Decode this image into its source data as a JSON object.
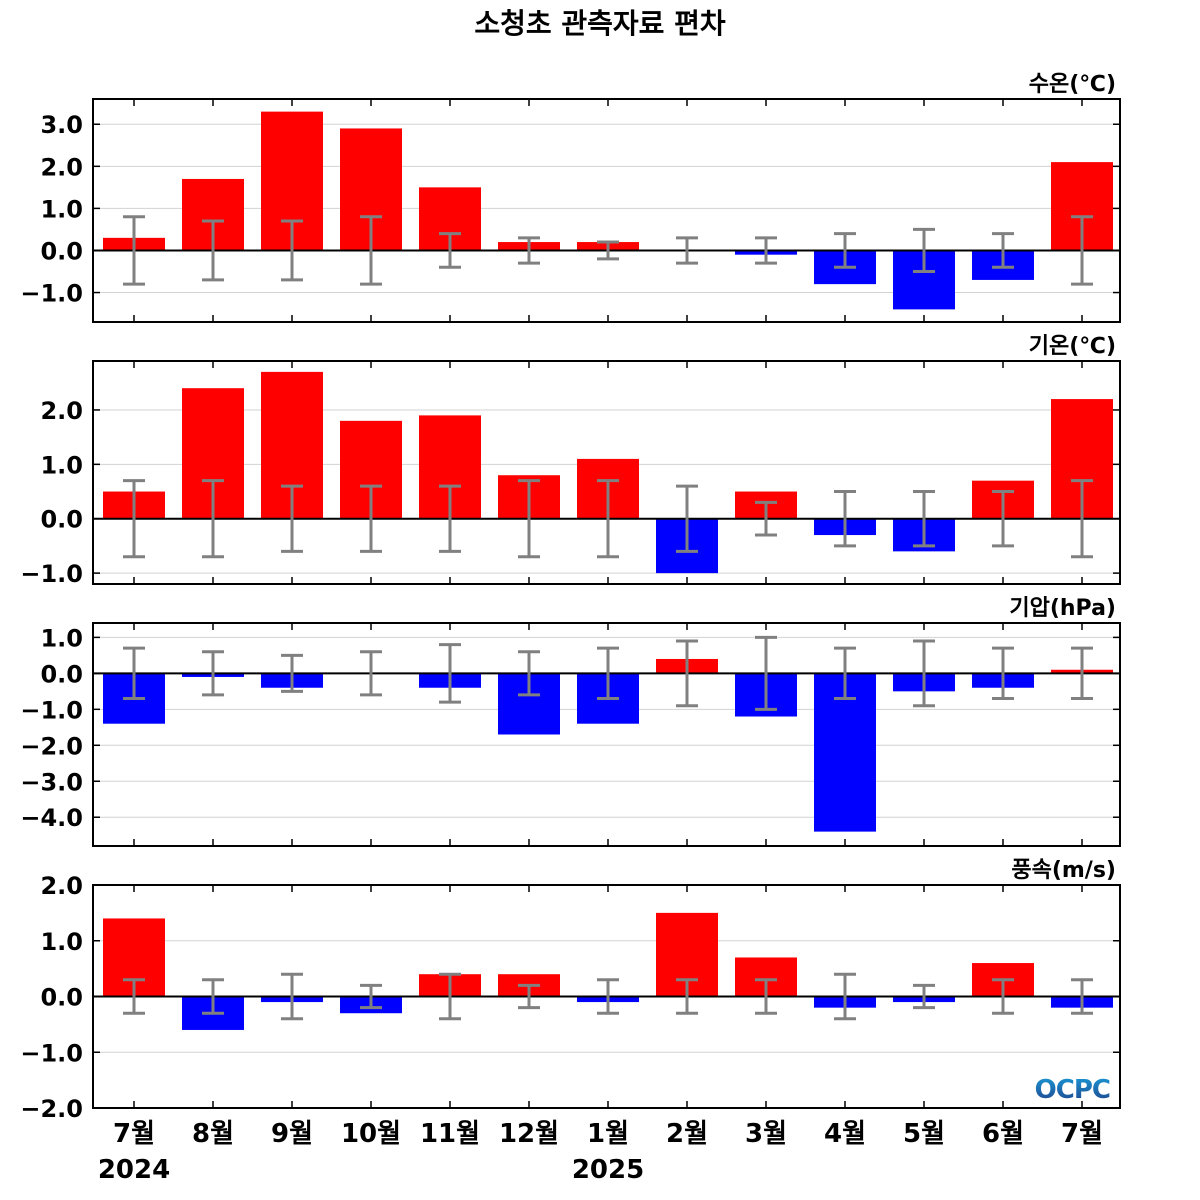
{
  "title": "소청초 관측자료 편차",
  "logo_text": "OCPC",
  "colors": {
    "positive": "#ff0000",
    "negative": "#0000ff",
    "errorbar": "#808080",
    "gridline": "#d3d3d3",
    "zero_line": "#000000",
    "logo_top": "#1a9ad6",
    "logo_bottom": "#1f3f8a"
  },
  "chart_data": [
    {
      "type": "bar",
      "ylabel": "수온(℃)",
      "ylim": [
        -1.7,
        3.6
      ],
      "yticks": [
        -1.0,
        0.0,
        1.0,
        2.0,
        3.0
      ],
      "tick_labels": [
        "−1.0",
        "0.0",
        "1.0",
        "2.0",
        "3.0"
      ],
      "grid": true,
      "categories": [
        "7월",
        "8월",
        "9월",
        "10월",
        "11월",
        "12월",
        "1월",
        "2월",
        "3월",
        "4월",
        "5월",
        "6월",
        "7월"
      ],
      "values": [
        0.3,
        1.7,
        3.3,
        2.9,
        1.5,
        0.2,
        0.2,
        0.0,
        -0.1,
        -0.8,
        -1.4,
        -0.7,
        2.1
      ],
      "error": [
        0.8,
        0.7,
        0.7,
        0.8,
        0.4,
        0.3,
        0.2,
        0.3,
        0.3,
        0.4,
        0.5,
        0.4,
        0.8
      ]
    },
    {
      "type": "bar",
      "ylabel": "기온(℃)",
      "ylim": [
        -1.2,
        2.9
      ],
      "yticks": [
        -1.0,
        0.0,
        1.0,
        2.0
      ],
      "tick_labels": [
        "−1.0",
        "0.0",
        "1.0",
        "2.0"
      ],
      "grid": true,
      "categories": [
        "7월",
        "8월",
        "9월",
        "10월",
        "11월",
        "12월",
        "1월",
        "2월",
        "3월",
        "4월",
        "5월",
        "6월",
        "7월"
      ],
      "values": [
        0.5,
        2.4,
        2.7,
        1.8,
        1.9,
        0.8,
        1.1,
        -1.0,
        0.5,
        -0.3,
        -0.6,
        0.7,
        2.2
      ],
      "error": [
        0.7,
        0.7,
        0.6,
        0.6,
        0.6,
        0.7,
        0.7,
        0.6,
        0.3,
        0.5,
        0.5,
        0.5,
        0.7
      ]
    },
    {
      "type": "bar",
      "ylabel": "기압(hPa)",
      "ylim": [
        -4.8,
        1.4
      ],
      "yticks": [
        -4.0,
        -3.0,
        -2.0,
        -1.0,
        0.0,
        1.0
      ],
      "tick_labels": [
        "−4.0",
        "−3.0",
        "−2.0",
        "−1.0",
        "0.0",
        "1.0"
      ],
      "grid": true,
      "categories": [
        "7월",
        "8월",
        "9월",
        "10월",
        "11월",
        "12월",
        "1월",
        "2월",
        "3월",
        "4월",
        "5월",
        "6월",
        "7월"
      ],
      "values": [
        -1.4,
        -0.1,
        -0.4,
        0.0,
        -0.4,
        -1.7,
        -1.4,
        0.4,
        -1.2,
        -4.4,
        -0.5,
        -0.4,
        0.1
      ],
      "error": [
        0.7,
        0.6,
        0.5,
        0.6,
        0.8,
        0.6,
        0.7,
        0.9,
        1.0,
        0.7,
        0.9,
        0.7,
        0.7
      ]
    },
    {
      "type": "bar",
      "ylabel": "풍속(m/s)",
      "ylim": [
        -2.0,
        2.0
      ],
      "yticks": [
        -2.0,
        -1.0,
        0.0,
        1.0,
        2.0
      ],
      "tick_labels": [
        "−2.0",
        "−1.0",
        "0.0",
        "1.0",
        "2.0"
      ],
      "grid": true,
      "categories": [
        "7월",
        "8월",
        "9월",
        "10월",
        "11월",
        "12월",
        "1월",
        "2월",
        "3월",
        "4월",
        "5월",
        "6월",
        "7월"
      ],
      "values": [
        1.4,
        -0.6,
        -0.1,
        -0.3,
        0.4,
        0.4,
        -0.1,
        1.5,
        0.7,
        -0.2,
        -0.1,
        0.6,
        -0.2
      ],
      "error": [
        0.3,
        0.3,
        0.4,
        0.2,
        0.4,
        0.2,
        0.3,
        0.3,
        0.3,
        0.4,
        0.2,
        0.3,
        0.3
      ]
    }
  ],
  "x_axis": {
    "categories": [
      "7월",
      "8월",
      "9월",
      "10월",
      "11월",
      "12월",
      "1월",
      "2월",
      "3월",
      "4월",
      "5월",
      "6월",
      "7월"
    ],
    "years": [
      {
        "label": "2024",
        "at_index": 0
      },
      {
        "label": "2025",
        "at_index": 6
      }
    ]
  }
}
